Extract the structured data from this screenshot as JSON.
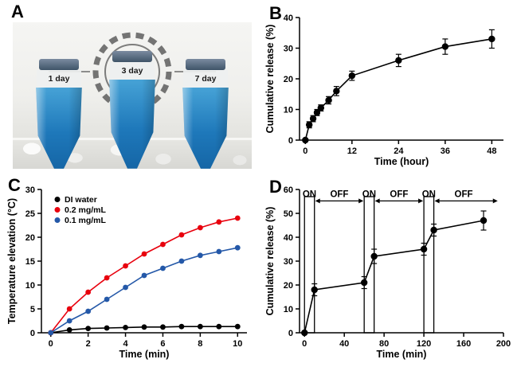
{
  "figure": {
    "panels": {
      "A": {
        "label": "A",
        "tube_labels": [
          "1 day",
          "3 day",
          "7 day"
        ],
        "logo_text": "H"
      },
      "B": {
        "label": "B"
      },
      "C": {
        "label": "C"
      },
      "D": {
        "label": "D"
      }
    }
  },
  "colors": {
    "black": "#000000",
    "red": "#e8000d",
    "blue": "#2458a8",
    "tube_blue": "#1e78ba"
  },
  "chart_data": [
    {
      "id": "B",
      "type": "line",
      "title": "",
      "xlabel": "Time (hour)",
      "ylabel": "Cumulative release (%)",
      "xlim": [
        -1.5,
        51
      ],
      "ylim": [
        0,
        40
      ],
      "xticks": [
        0,
        12,
        24,
        36,
        48
      ],
      "yticks": [
        0,
        10,
        20,
        30,
        40
      ],
      "grid": false,
      "series": [
        {
          "name": "cumulative-release",
          "color": "#000000",
          "marker": "circle",
          "x": [
            0,
            1,
            2,
            3,
            4,
            6,
            8,
            12,
            24,
            36,
            48
          ],
          "y": [
            0,
            5,
            7,
            9,
            10.5,
            13,
            16,
            21,
            26,
            30.5,
            33
          ],
          "yerr": [
            0.4,
            1,
            1,
            1,
            1,
            1.2,
            1.5,
            1.5,
            2,
            2.5,
            3
          ]
        }
      ]
    },
    {
      "id": "C",
      "type": "line",
      "title": "",
      "xlabel": "Time (min)",
      "ylabel": "Temperature elevation (°C)",
      "xlim": [
        -0.5,
        10.5
      ],
      "ylim": [
        0,
        30
      ],
      "xticks": [
        0,
        2,
        4,
        6,
        8,
        10
      ],
      "yticks": [
        0,
        5,
        10,
        15,
        20,
        25,
        30
      ],
      "grid": false,
      "show_legend": true,
      "legend_position": "top-left",
      "series": [
        {
          "name": "DI water",
          "color": "#000000",
          "marker": "circle",
          "x": [
            0,
            1,
            2,
            3,
            4,
            5,
            6,
            7,
            8,
            9,
            10
          ],
          "y": [
            0,
            0.6,
            0.9,
            1,
            1.1,
            1.2,
            1.2,
            1.3,
            1.3,
            1.3,
            1.3
          ]
        },
        {
          "name": "0.2 mg/mL",
          "color": "#e8000d",
          "marker": "circle",
          "x": [
            0,
            1,
            2,
            3,
            4,
            5,
            6,
            7,
            8,
            9,
            10
          ],
          "y": [
            0,
            5,
            8.5,
            11.5,
            14,
            16.5,
            18.5,
            20.5,
            22,
            23.2,
            24
          ]
        },
        {
          "name": "0.1 mg/mL",
          "color": "#2458a8",
          "marker": "circle",
          "x": [
            0,
            1,
            2,
            3,
            4,
            5,
            6,
            7,
            8,
            9,
            10
          ],
          "y": [
            0,
            2.5,
            4.5,
            7,
            9.5,
            12,
            13.5,
            15,
            16.2,
            17,
            17.8
          ]
        }
      ]
    },
    {
      "id": "D",
      "type": "line",
      "title": "",
      "xlabel": "Time (min)",
      "ylabel": "Cumulative release (%)",
      "xlim": [
        -5,
        200
      ],
      "ylim": [
        0,
        60
      ],
      "xticks": [
        0,
        40,
        80,
        120,
        160,
        200
      ],
      "yticks": [
        0,
        10,
        20,
        30,
        40,
        50,
        60
      ],
      "grid": false,
      "on_off": {
        "on_intervals": [
          [
            0,
            10
          ],
          [
            60,
            70
          ],
          [
            120,
            130
          ]
        ],
        "off_spans": [
          [
            10,
            60
          ],
          [
            70,
            120
          ],
          [
            130,
            195
          ]
        ],
        "labels": [
          {
            "text": "ON",
            "x": 5,
            "color": "#e8000d"
          },
          {
            "text": "OFF",
            "x": 35,
            "color": "#000000"
          },
          {
            "text": "ON",
            "x": 65,
            "color": "#e8000d"
          },
          {
            "text": "OFF",
            "x": 95,
            "color": "#000000"
          },
          {
            "text": "ON",
            "x": 125,
            "color": "#e8000d"
          },
          {
            "text": "OFF",
            "x": 160,
            "color": "#000000"
          }
        ]
      },
      "series": [
        {
          "name": "cumulative-release",
          "color": "#000000",
          "marker": "circle",
          "x": [
            0,
            10,
            60,
            70,
            120,
            130,
            180
          ],
          "y": [
            0,
            18,
            21,
            32,
            35,
            43,
            47
          ],
          "yerr": [
            0.5,
            2.5,
            2.5,
            3,
            2.5,
            2.5,
            4
          ]
        }
      ]
    }
  ]
}
